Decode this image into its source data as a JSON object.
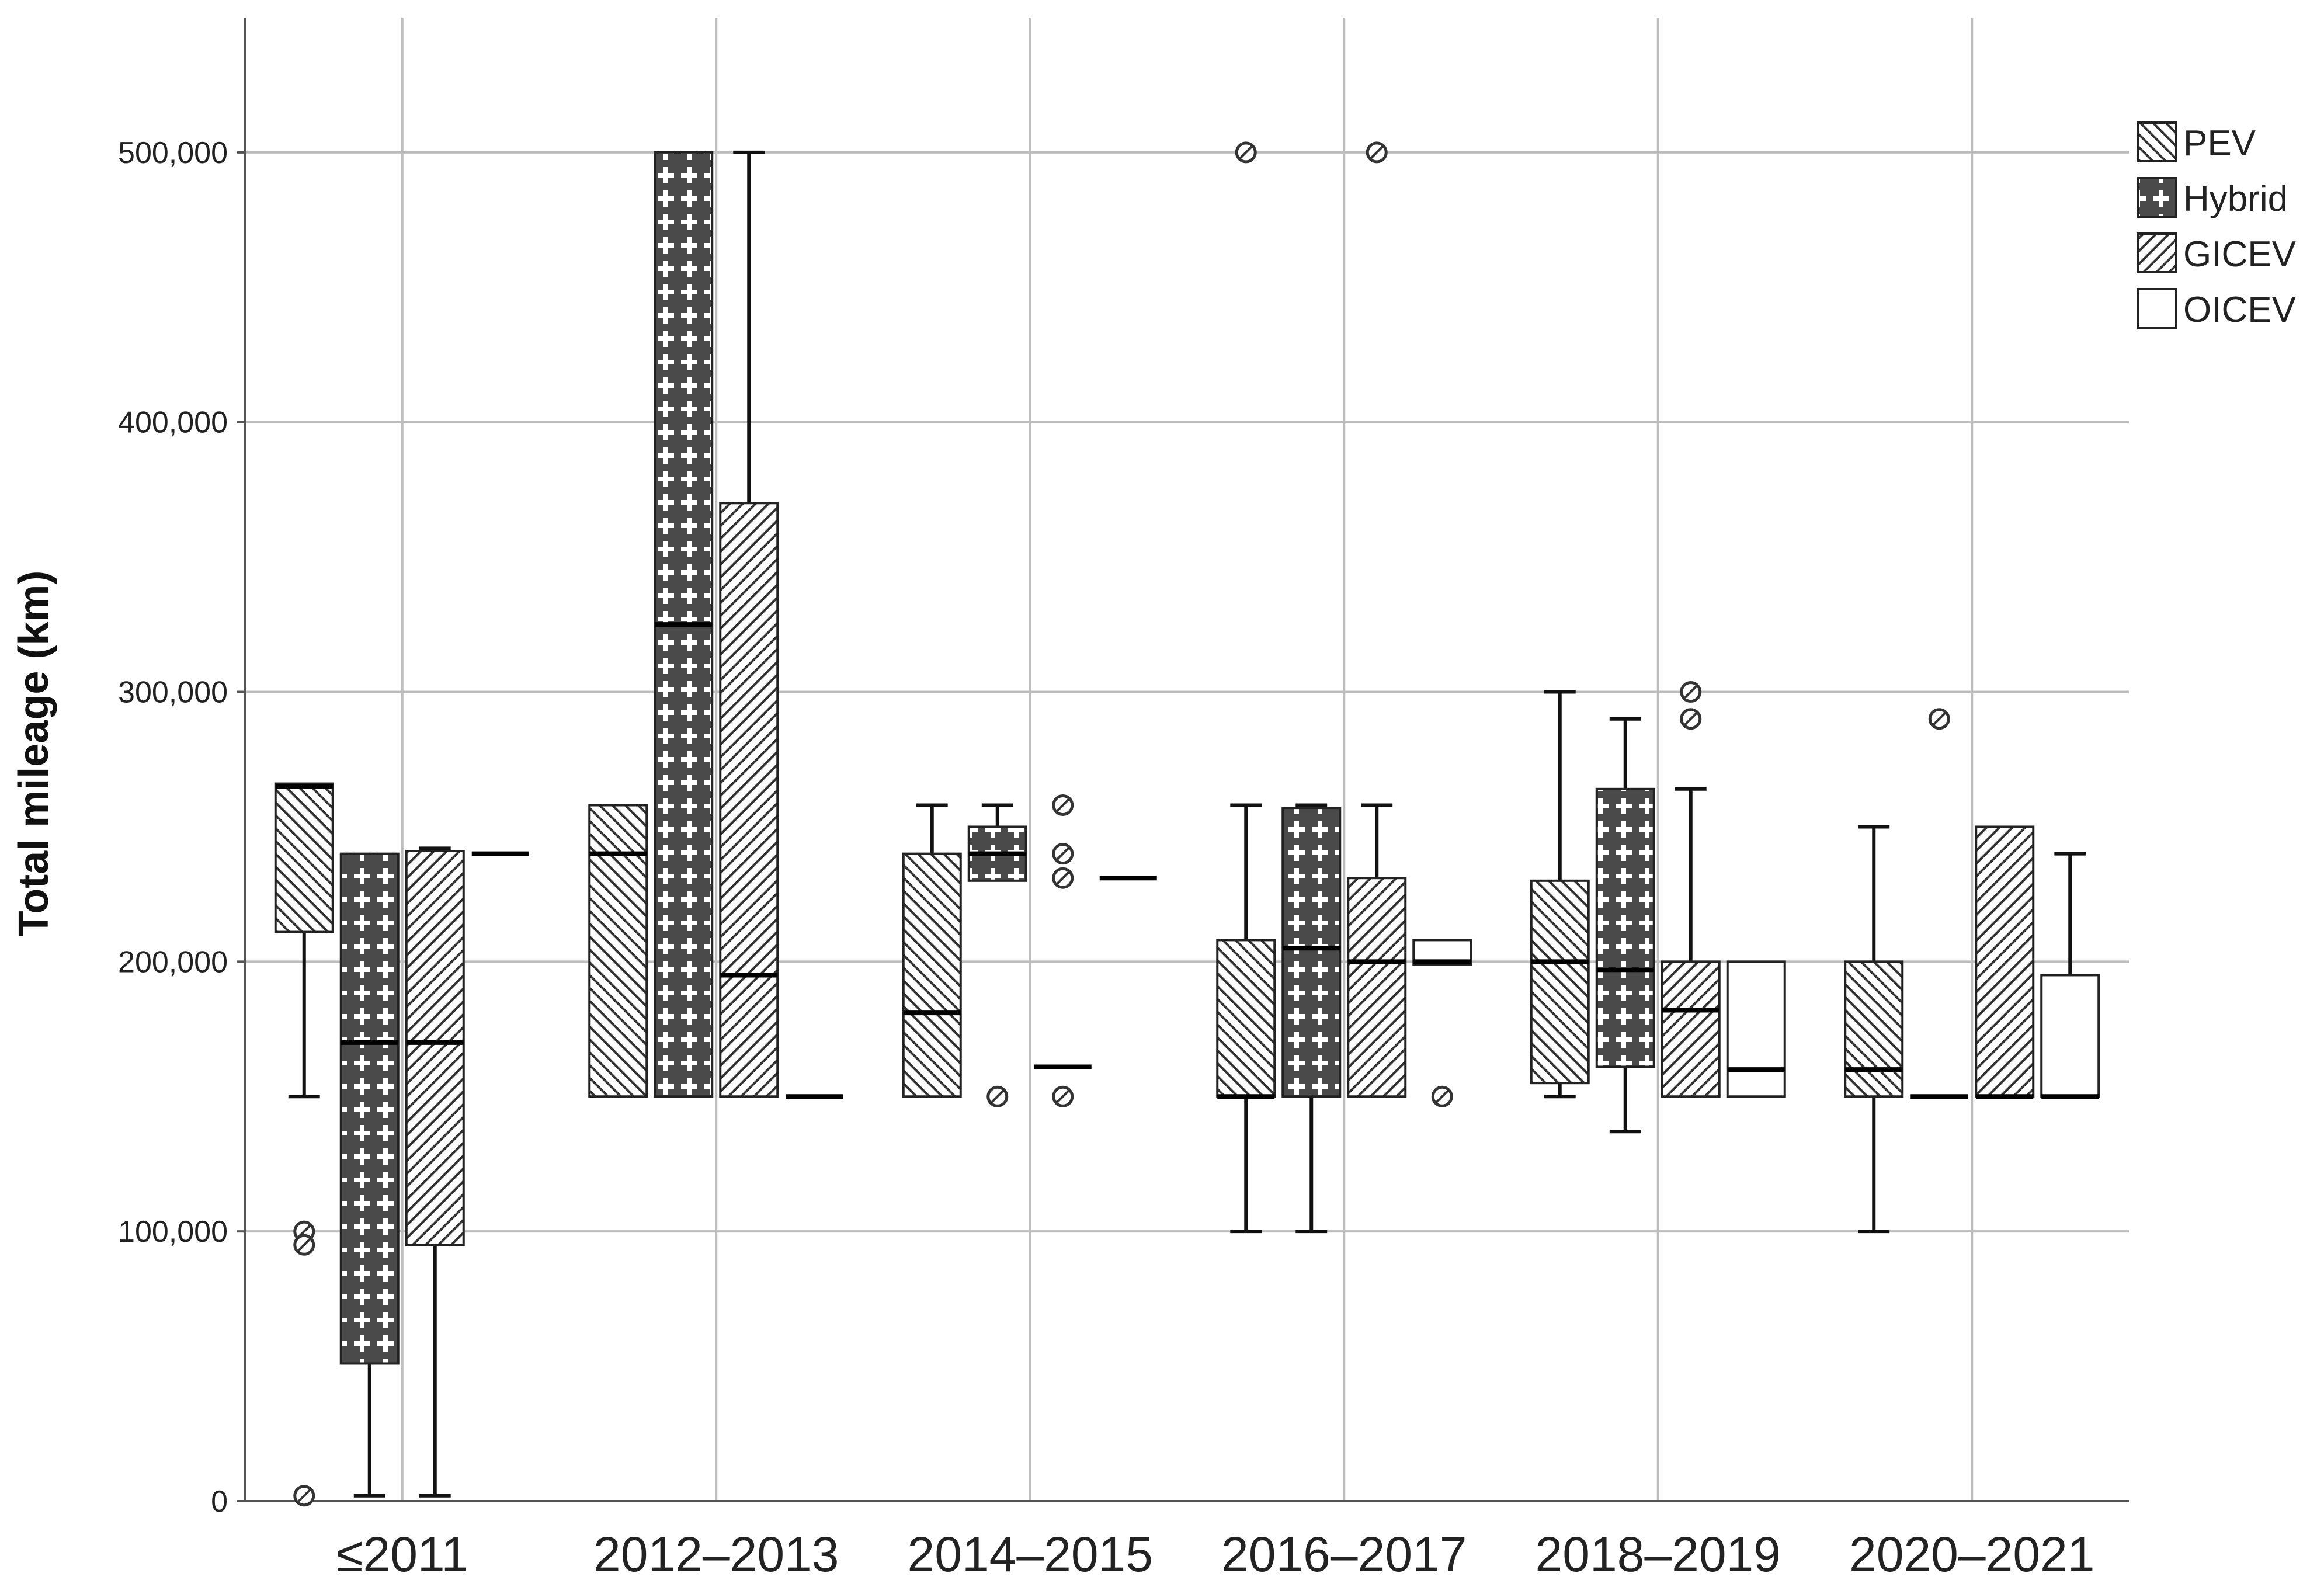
{
  "chart_data": {
    "type": "boxplot",
    "ylabel": "Total mileage (km)",
    "xlabel": "",
    "ylim": [
      0,
      550000
    ],
    "yticks": [
      0,
      100000,
      200000,
      300000,
      400000,
      500000
    ],
    "ytick_labels": [
      "0",
      "100,000",
      "200,000",
      "300,000",
      "400,000",
      "500,000"
    ],
    "categories": [
      "≤2011",
      "2012–2013",
      "2014–2015",
      "2016–2017",
      "2018–2019",
      "2020–2021"
    ],
    "grid": true,
    "legend_position": "top-right",
    "series": [
      {
        "name": "PEV",
        "pattern": "diag-down",
        "boxes": [
          {
            "whisker_low": 150000,
            "q1": 211000,
            "median": 265000,
            "q3": 266000,
            "whisker_high": 266000,
            "outliers": [
              100000,
              95000,
              2000
            ]
          },
          {
            "whisker_low": 150000,
            "q1": 150000,
            "median": 240000,
            "q3": 258000,
            "whisker_high": 258000,
            "outliers": []
          },
          {
            "whisker_low": 150000,
            "q1": 150000,
            "median": 181000,
            "q3": 240000,
            "whisker_high": 258000,
            "outliers": []
          },
          {
            "whisker_low": 100000,
            "q1": 150000,
            "median": 150000,
            "q3": 208000,
            "whisker_high": 258000,
            "outliers": [
              500000
            ]
          },
          {
            "whisker_low": 150000,
            "q1": 155000,
            "median": 200000,
            "q3": 230000,
            "whisker_high": 300000,
            "outliers": []
          },
          {
            "whisker_low": 100000,
            "q1": 150000,
            "median": 160000,
            "q3": 200000,
            "whisker_high": 250000,
            "outliers": []
          }
        ]
      },
      {
        "name": "Hybrid",
        "pattern": "cross",
        "boxes": [
          {
            "whisker_low": 2000,
            "q1": 51000,
            "median": 170000,
            "q3": 240000,
            "whisker_high": 240000,
            "outliers": []
          },
          {
            "whisker_low": 150000,
            "q1": 150000,
            "median": 325000,
            "q3": 500000,
            "whisker_high": 500000,
            "outliers": []
          },
          {
            "whisker_low": 230000,
            "q1": 230000,
            "median": 240000,
            "q3": 250000,
            "whisker_high": 258000,
            "outliers": [
              150000
            ]
          },
          {
            "whisker_low": 100000,
            "q1": 150000,
            "median": 205000,
            "q3": 257000,
            "whisker_high": 258000,
            "outliers": []
          },
          {
            "whisker_low": 137000,
            "q1": 161000,
            "median": 197000,
            "q3": 264000,
            "whisker_high": 290000,
            "outliers": []
          },
          {
            "whisker_low": 150000,
            "q1": 150000,
            "median": 150000,
            "q3": 150000,
            "whisker_high": 150000,
            "outliers": [
              290000
            ]
          }
        ]
      },
      {
        "name": "GICEV",
        "pattern": "diag-up",
        "boxes": [
          {
            "whisker_low": 2000,
            "q1": 95000,
            "median": 170000,
            "q3": 241000,
            "whisker_high": 242000,
            "outliers": []
          },
          {
            "whisker_low": 150000,
            "q1": 150000,
            "median": 195000,
            "q3": 370000,
            "whisker_high": 500000,
            "outliers": []
          },
          {
            "whisker_low": 161000,
            "q1": 161000,
            "median": 161000,
            "q3": 161000,
            "whisker_high": 161000,
            "outliers": [
              258000,
              240000,
              231000,
              150000
            ]
          },
          {
            "whisker_low": 150000,
            "q1": 150000,
            "median": 200000,
            "q3": 231000,
            "whisker_high": 258000,
            "outliers": [
              500000
            ]
          },
          {
            "whisker_low": 150000,
            "q1": 150000,
            "median": 182000,
            "q3": 200000,
            "whisker_high": 264000,
            "outliers": [
              300000,
              290000
            ]
          },
          {
            "whisker_low": 150000,
            "q1": 150000,
            "median": 150000,
            "q3": 250000,
            "whisker_high": 250000,
            "outliers": []
          }
        ]
      },
      {
        "name": "OICEV",
        "pattern": "none",
        "boxes": [
          {
            "whisker_low": 240000,
            "q1": 240000,
            "median": 240000,
            "q3": 240000,
            "whisker_high": 240000,
            "outliers": []
          },
          {
            "whisker_low": 150000,
            "q1": 150000,
            "median": 150000,
            "q3": 150000,
            "whisker_high": 150000,
            "outliers": []
          },
          {
            "whisker_low": 231000,
            "q1": 231000,
            "median": 231000,
            "q3": 231000,
            "whisker_high": 231000,
            "outliers": []
          },
          {
            "whisker_low": 199000,
            "q1": 199000,
            "median": 200000,
            "q3": 208000,
            "whisker_high": 208000,
            "outliers": [
              150000
            ]
          },
          {
            "whisker_low": 150000,
            "q1": 150000,
            "median": 160000,
            "q3": 200000,
            "whisker_high": 200000,
            "outliers": []
          },
          {
            "whisker_low": 150000,
            "q1": 150000,
            "median": 150000,
            "q3": 195000,
            "whisker_high": 240000,
            "outliers": []
          }
        ]
      }
    ]
  }
}
